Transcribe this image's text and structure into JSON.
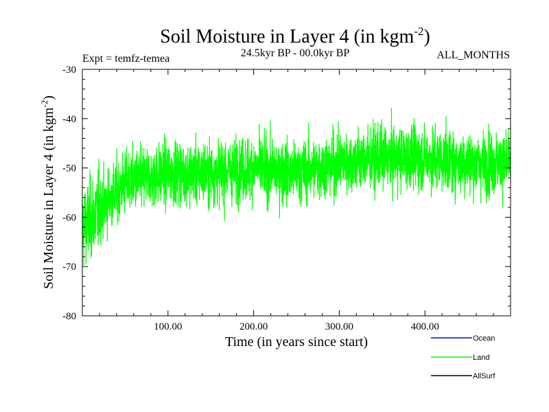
{
  "chart_data": {
    "type": "line",
    "title_main": "Soil Moisture in Layer 4 (in kgm",
    "title_sup": "-2",
    "title_close": ")",
    "experiment": "Expt = temfz-temea",
    "period": "24.5kyr BP - 00.0kyr BP",
    "months": "ALL_MONTHS",
    "xlabel": "Time (in years since start)",
    "ylabel_main": "Soil Moisture in Layer 4 (in kgm",
    "ylabel_sup": "-2",
    "ylabel_close": ")",
    "xlim": [
      0,
      500
    ],
    "ylim": [
      -80,
      -30
    ],
    "xticks": [
      100,
      200,
      300,
      400
    ],
    "xtick_labels": [
      "100.00",
      "200.00",
      "300.00",
      "400.00"
    ],
    "yticks": [
      -30,
      -40,
      -50,
      -60,
      -70,
      -80
    ],
    "ytick_labels": [
      "-30",
      "-40",
      "-50",
      "-60",
      "-70",
      "-80"
    ],
    "series": [
      {
        "name": "Land",
        "color": "#00ff00",
        "x_start": 0,
        "x_step": 50,
        "trend": [
          -62,
          -53,
          -51,
          -51,
          -50,
          -51,
          -49,
          -48,
          -48,
          -49,
          -49
        ],
        "spread": 4.5,
        "n_points": 3000
      }
    ],
    "legend": [
      {
        "label": "Ocean",
        "color": "#0000ff"
      },
      {
        "label": "Land",
        "color": "#00ff00"
      },
      {
        "label": "AllSurf",
        "color": "#000000"
      }
    ]
  }
}
